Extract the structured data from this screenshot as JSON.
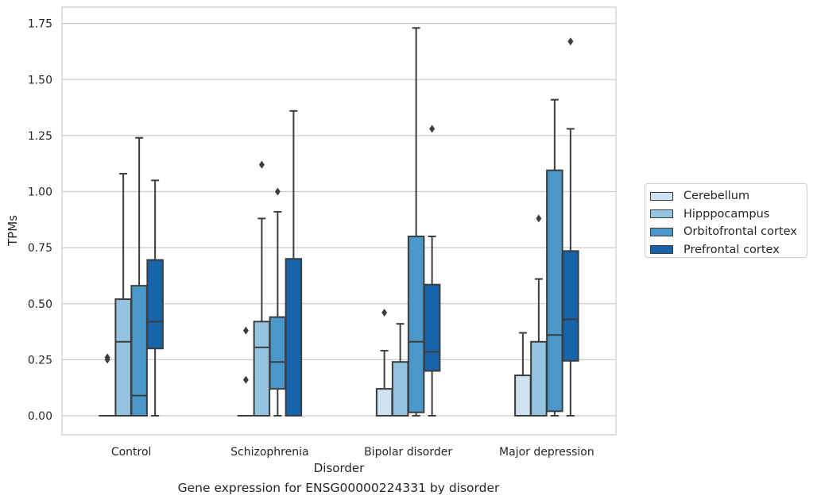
{
  "caption": "Gene expression for ENSG00000224331 by disorder",
  "chart_data": {
    "type": "boxplot",
    "xlabel": "Disorder",
    "ylabel": "TPMs",
    "ylim": [
      -0.085,
      1.82
    ],
    "yticks": [
      "0.00",
      "0.25",
      "0.50",
      "0.75",
      "1.00",
      "1.25",
      "1.50",
      "1.75"
    ],
    "grid": "horizontal",
    "legend_position": "outside-right",
    "categories": [
      "Control",
      "Schizophrenia",
      "Bipolar disorder",
      "Major depression"
    ],
    "series": [
      {
        "name": "Cerebellum",
        "color": "#d0e1f2",
        "boxes": [
          {
            "whisker_low": 0.0,
            "q1": 0.0,
            "median": 0.0,
            "q3": 0.0,
            "whisker_high": 0.0,
            "outliers": [
              0.25,
              0.26
            ]
          },
          {
            "whisker_low": 0.0,
            "q1": 0.0,
            "median": 0.0,
            "q3": 0.0,
            "whisker_high": 0.0,
            "outliers": [
              0.16,
              0.38
            ]
          },
          {
            "whisker_low": 0.0,
            "q1": 0.0,
            "median": 0.0,
            "q3": 0.12,
            "whisker_high": 0.29,
            "outliers": [
              0.46
            ]
          },
          {
            "whisker_low": 0.0,
            "q1": 0.0,
            "median": 0.0,
            "q3": 0.18,
            "whisker_high": 0.37,
            "outliers": []
          }
        ]
      },
      {
        "name": "Hipppocampus",
        "color": "#94c4df",
        "boxes": [
          {
            "whisker_low": 0.0,
            "q1": 0.0,
            "median": 0.33,
            "q3": 0.52,
            "whisker_high": 1.08,
            "outliers": []
          },
          {
            "whisker_low": 0.0,
            "q1": 0.0,
            "median": 0.305,
            "q3": 0.42,
            "whisker_high": 0.88,
            "outliers": [
              1.12
            ]
          },
          {
            "whisker_low": 0.0,
            "q1": 0.0,
            "median": 0.0,
            "q3": 0.24,
            "whisker_high": 0.41,
            "outliers": []
          },
          {
            "whisker_low": 0.0,
            "q1": 0.0,
            "median": 0.0,
            "q3": 0.33,
            "whisker_high": 0.61,
            "outliers": [
              0.88
            ]
          }
        ]
      },
      {
        "name": "Orbitofrontal cortex",
        "color": "#4a98c9",
        "boxes": [
          {
            "whisker_low": 0.0,
            "q1": 0.0,
            "median": 0.09,
            "q3": 0.58,
            "whisker_high": 1.24,
            "outliers": []
          },
          {
            "whisker_low": 0.0,
            "q1": 0.12,
            "median": 0.24,
            "q3": 0.44,
            "whisker_high": 0.91,
            "outliers": [
              1.0
            ]
          },
          {
            "whisker_low": 0.0,
            "q1": 0.015,
            "median": 0.33,
            "q3": 0.8,
            "whisker_high": 1.73,
            "outliers": []
          },
          {
            "whisker_low": 0.0,
            "q1": 0.02,
            "median": 0.36,
            "q3": 1.095,
            "whisker_high": 1.41,
            "outliers": []
          }
        ]
      },
      {
        "name": "Prefrontal cortex",
        "color": "#1764ab",
        "boxes": [
          {
            "whisker_low": 0.0,
            "q1": 0.3,
            "median": 0.42,
            "q3": 0.695,
            "whisker_high": 1.05,
            "outliers": []
          },
          {
            "whisker_low": 0.0,
            "q1": 0.0,
            "median": 0.0,
            "q3": 0.7,
            "whisker_high": 1.36,
            "outliers": []
          },
          {
            "whisker_low": 0.0,
            "q1": 0.2,
            "median": 0.285,
            "q3": 0.585,
            "whisker_high": 0.8,
            "outliers": [
              1.28
            ]
          },
          {
            "whisker_low": 0.0,
            "q1": 0.245,
            "median": 0.43,
            "q3": 0.735,
            "whisker_high": 1.28,
            "outliers": [
              1.67
            ]
          }
        ]
      }
    ]
  }
}
